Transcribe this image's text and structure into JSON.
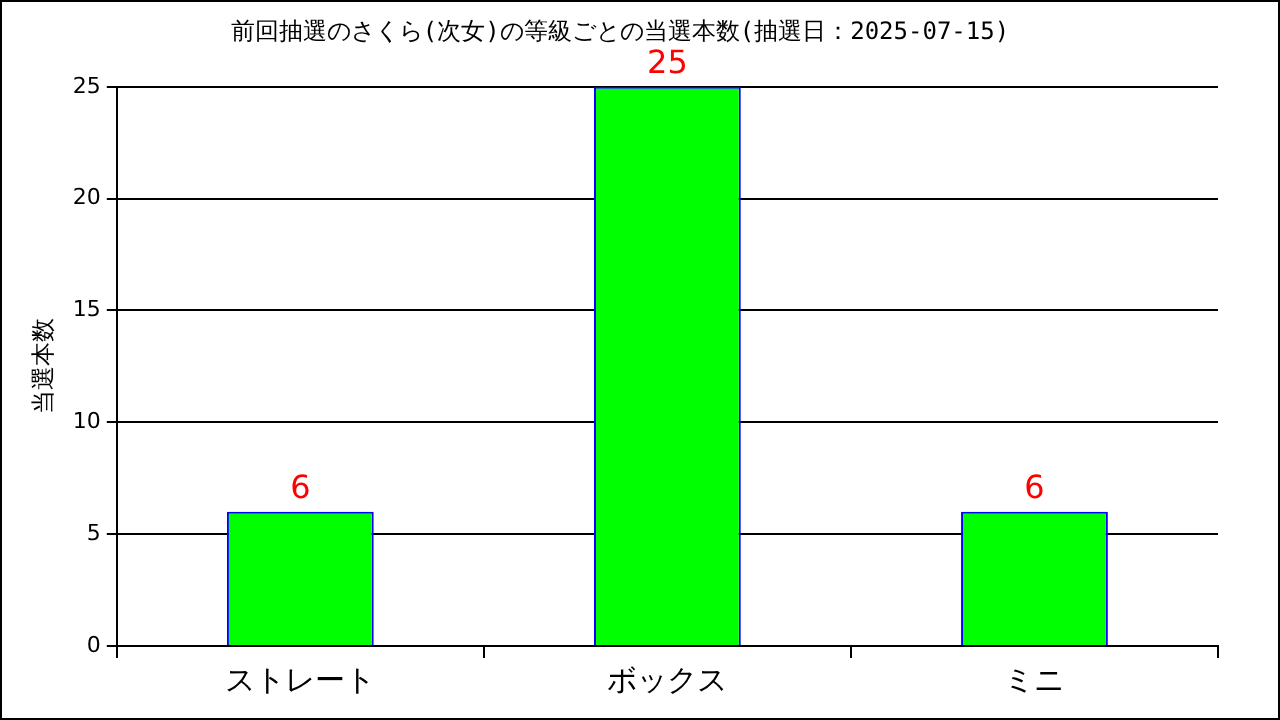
{
  "chart_data": {
    "type": "bar",
    "title": "前回抽選のさくら(次女)の等級ごとの当選本数(抽選日：2025-07-15)",
    "ylabel": "当選本数",
    "categories": [
      "ストレート",
      "ボックス",
      "ミニ"
    ],
    "values": [
      6,
      25,
      6
    ],
    "color": "#00ff00",
    "ylim": [
      0,
      25
    ],
    "yticks": [
      0,
      5,
      10,
      15,
      20,
      25
    ],
    "grid": "y",
    "data_labels": true
  }
}
